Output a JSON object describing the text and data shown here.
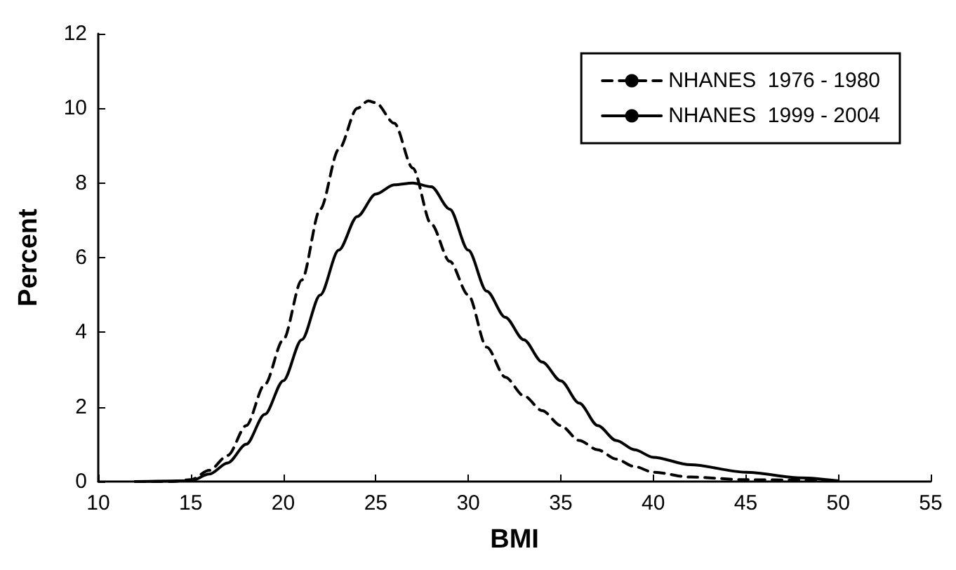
{
  "chart_data": {
    "type": "line",
    "xlabel": "BMI",
    "ylabel": "Percent",
    "xlim": [
      10,
      55
    ],
    "xticks": [
      10,
      15,
      20,
      25,
      30,
      35,
      40,
      45,
      50,
      55
    ],
    "ylim": [
      0,
      12
    ],
    "yticks": [
      0,
      2,
      4,
      6,
      8,
      10,
      12
    ],
    "grid": false,
    "legend": "top right",
    "marker": "none",
    "series": [
      {
        "name": "NHANES  1976 - 1980",
        "color": "#000000",
        "line_style": "dashed",
        "x": [
          12,
          14,
          15,
          16,
          17,
          18,
          19,
          20,
          21,
          22,
          23,
          24,
          24.6,
          25,
          26,
          27,
          28,
          29,
          30,
          31,
          32,
          33,
          34,
          35,
          36,
          37,
          38,
          39,
          40,
          42,
          45,
          50
        ],
        "values": [
          0,
          0,
          0.05,
          0.3,
          0.7,
          1.5,
          2.6,
          3.8,
          5.4,
          7.3,
          8.9,
          10,
          10.2,
          10.15,
          9.6,
          8.4,
          6.9,
          5.9,
          5,
          3.6,
          2.8,
          2.3,
          1.9,
          1.5,
          1.1,
          0.85,
          0.6,
          0.4,
          0.25,
          0.12,
          0.05,
          0.02
        ]
      },
      {
        "name": "NHANES  1999 - 2004",
        "color": "#000000",
        "line_style": "solid",
        "x": [
          12,
          15,
          16,
          17,
          18,
          19,
          20,
          21,
          22,
          23,
          24,
          25,
          26,
          27,
          28,
          29,
          30,
          31,
          32,
          33,
          34,
          35,
          36,
          37,
          38,
          39,
          40,
          42,
          45,
          48,
          50
        ],
        "values": [
          0,
          0.02,
          0.2,
          0.5,
          1,
          1.8,
          2.7,
          3.8,
          5,
          6.2,
          7.1,
          7.7,
          7.95,
          8,
          7.9,
          7.3,
          6.2,
          5.1,
          4.4,
          3.8,
          3.2,
          2.7,
          2.1,
          1.5,
          1.1,
          0.85,
          0.65,
          0.45,
          0.25,
          0.1,
          0.02
        ]
      }
    ]
  }
}
